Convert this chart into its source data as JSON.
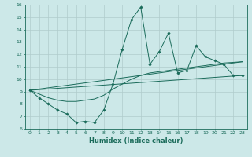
{
  "title": "",
  "xlabel": "Humidex (Indice chaleur)",
  "ylabel": "",
  "bg_color": "#cce8e8",
  "grid_color": "#b0cccc",
  "line_color": "#1a6b5a",
  "xlim": [
    -0.5,
    23.5
  ],
  "ylim": [
    6,
    16
  ],
  "xticks": [
    0,
    1,
    2,
    3,
    4,
    5,
    6,
    7,
    8,
    9,
    10,
    11,
    12,
    13,
    14,
    15,
    16,
    17,
    18,
    19,
    20,
    21,
    22,
    23
  ],
  "yticks": [
    6,
    7,
    8,
    9,
    10,
    11,
    12,
    13,
    14,
    15,
    16
  ],
  "series1_x": [
    0,
    1,
    2,
    3,
    4,
    5,
    6,
    7,
    8,
    9,
    10,
    11,
    12,
    13,
    14,
    15,
    16,
    17,
    18,
    19,
    20,
    21,
    22,
    23
  ],
  "series1_y": [
    9.1,
    8.5,
    8.0,
    7.5,
    7.2,
    6.5,
    6.6,
    6.5,
    7.5,
    9.6,
    12.4,
    14.8,
    15.8,
    11.2,
    12.2,
    13.7,
    10.5,
    10.7,
    12.7,
    11.8,
    11.5,
    11.2,
    10.3,
    10.3
  ],
  "series2_x": [
    0,
    23
  ],
  "series2_y": [
    9.1,
    10.3
  ],
  "series3_x": [
    0,
    1,
    2,
    3,
    4,
    5,
    6,
    7,
    8,
    9,
    10,
    11,
    12,
    13,
    14,
    15,
    16,
    17,
    18,
    19,
    20,
    21,
    22,
    23
  ],
  "series3_y": [
    9.1,
    8.8,
    8.5,
    8.3,
    8.2,
    8.2,
    8.3,
    8.4,
    8.7,
    9.2,
    9.6,
    10.0,
    10.3,
    10.5,
    10.6,
    10.7,
    10.8,
    10.9,
    11.0,
    11.1,
    11.2,
    11.3,
    11.35,
    11.4
  ],
  "series4_x": [
    0,
    23
  ],
  "series4_y": [
    9.1,
    11.4
  ]
}
